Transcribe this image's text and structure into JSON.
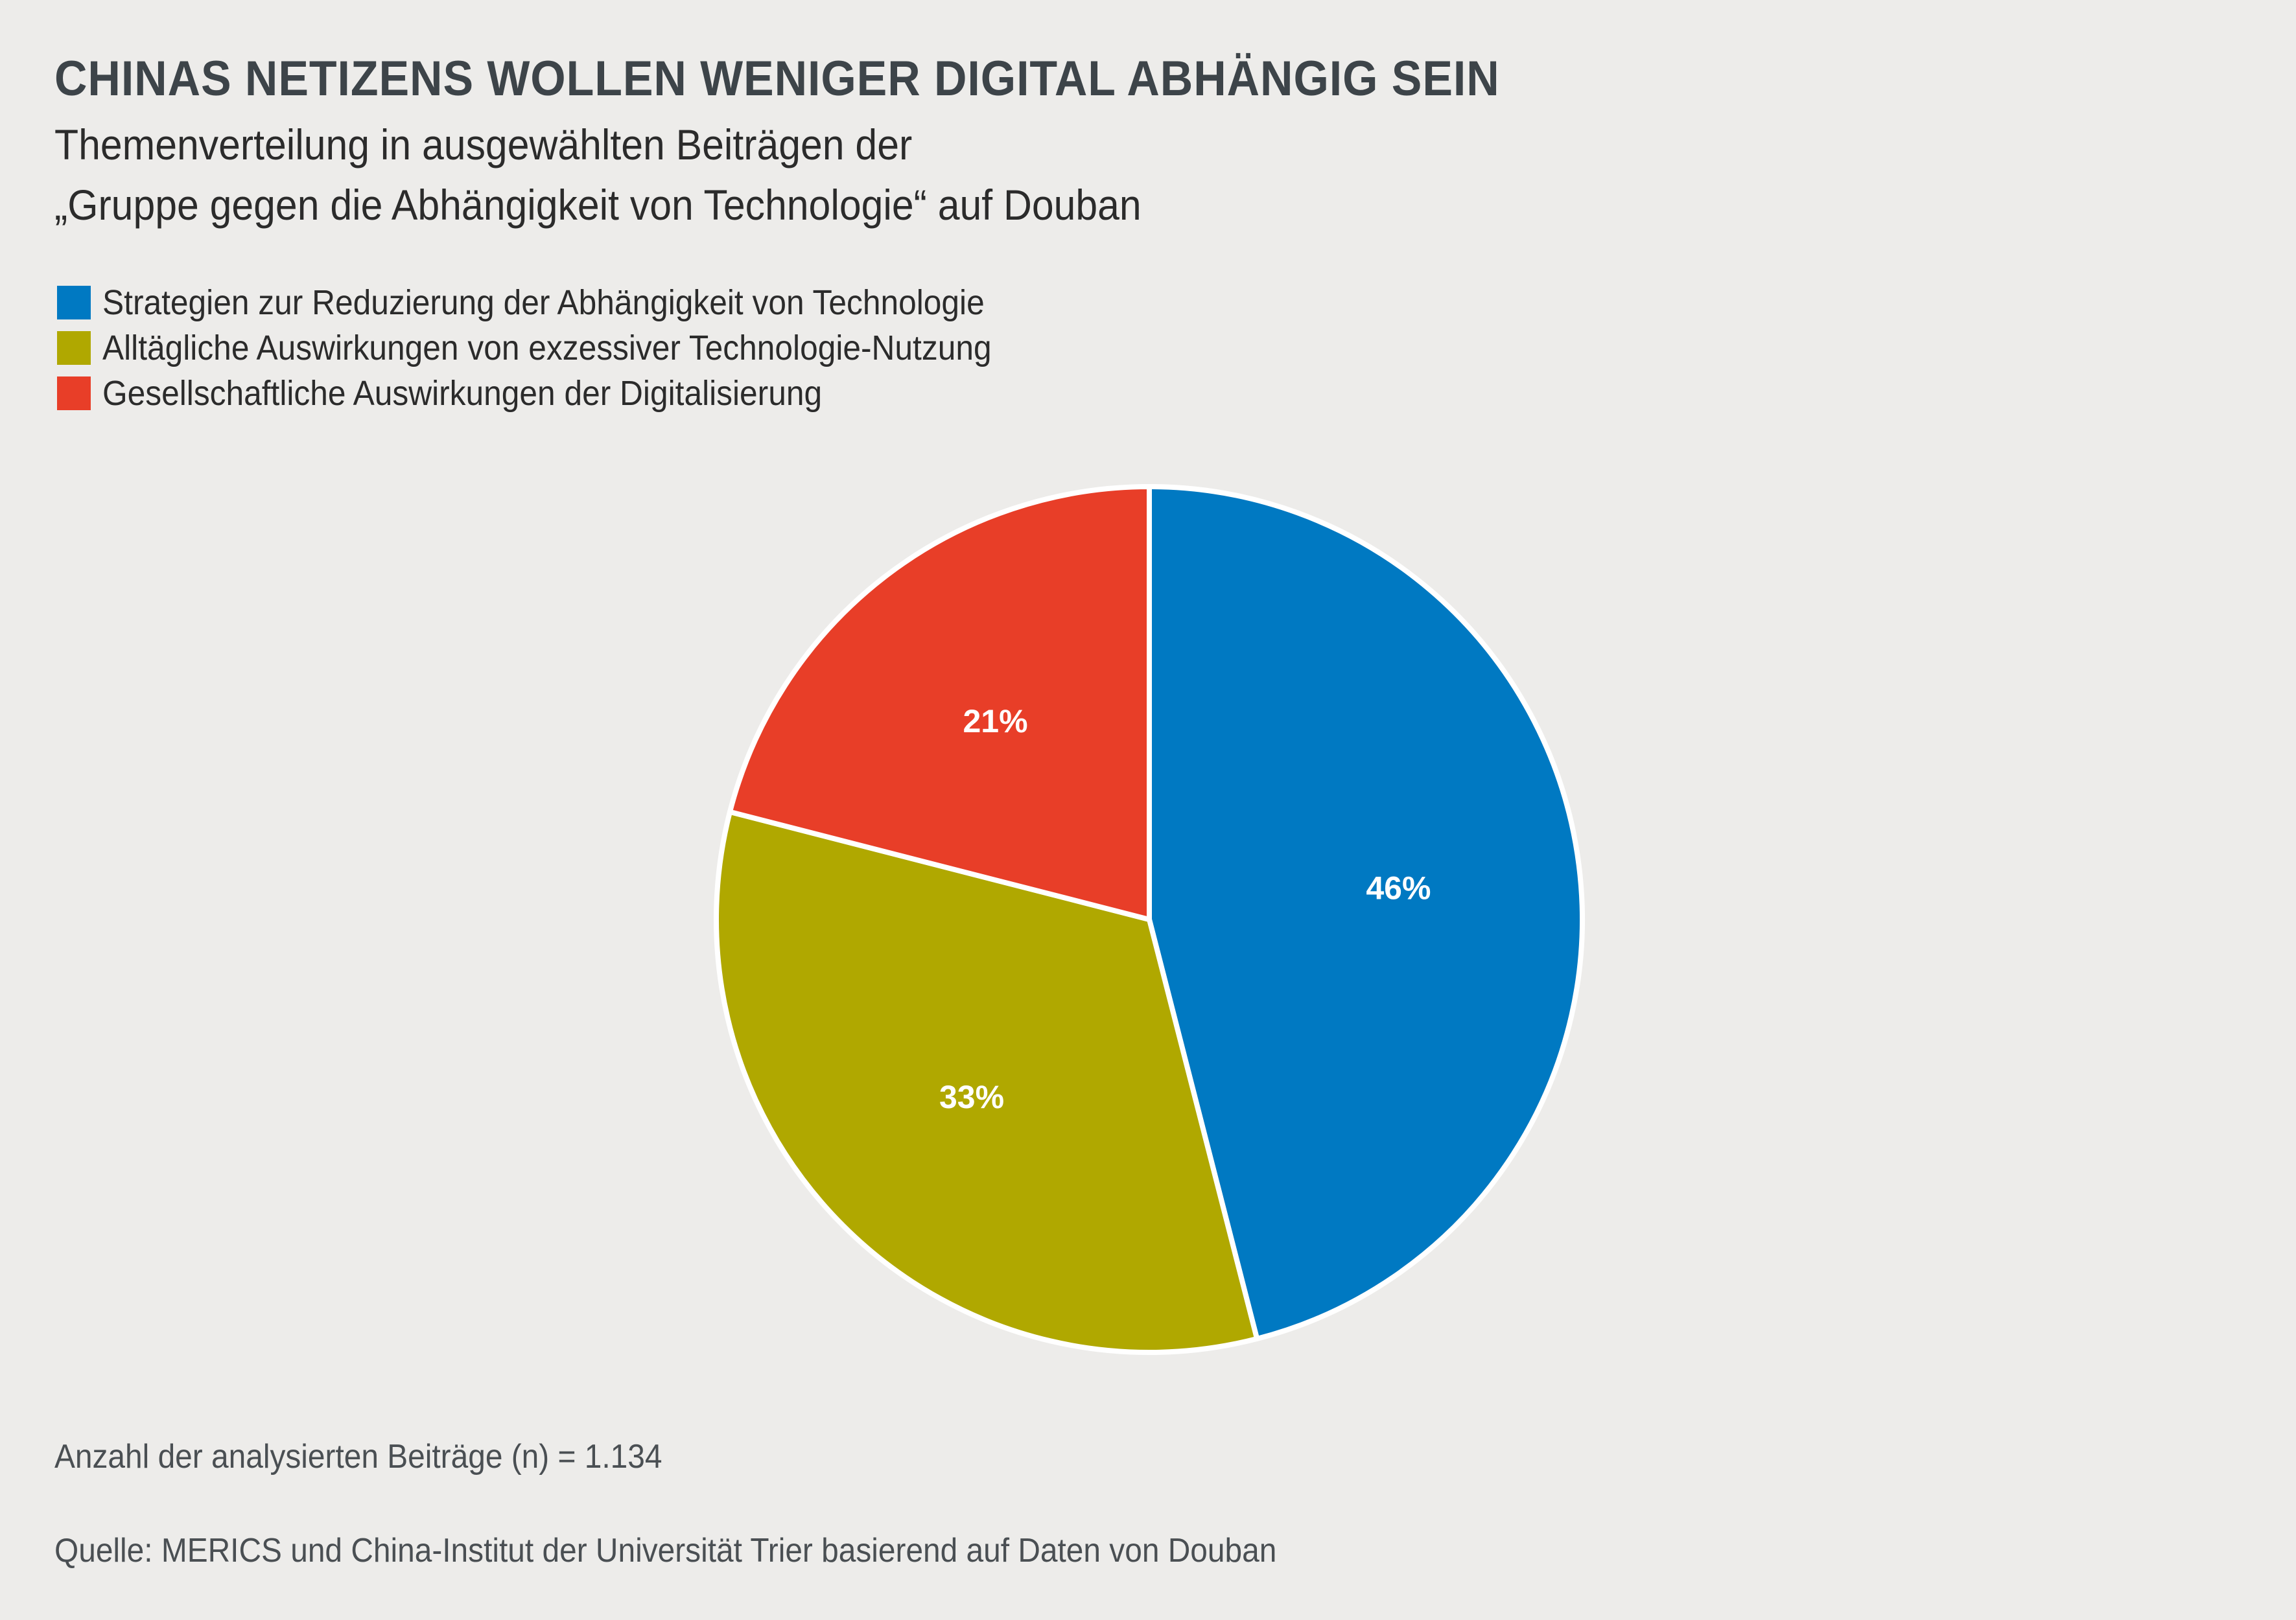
{
  "header": {
    "title": "CHINAS NETIZENS WOLLEN WENIGER DIGITAL ABHÄNGIG SEIN",
    "subtitle_line1": "Themenverteilung in ausgewählten Beiträgen der",
    "subtitle_line2": "„Gruppe gegen die Abhängigkeit von Technologie“ auf Douban"
  },
  "footer": {
    "sample_size": "Anzahl der analysierten Beiträge (n) = 1.134",
    "source": "Quelle: MERICS und China-Institut der Universität Trier basierend auf Daten von Douban"
  },
  "chart_data": {
    "type": "pie",
    "title": "CHINAS NETIZENS WOLLEN WENIGER DIGITAL ABHÄNGIG SEIN",
    "subtitle": "Themenverteilung in ausgewählten Beiträgen der „Gruppe gegen die Abhängigkeit von Technologie“ auf Douban",
    "legend_position": "top-left",
    "start_angle": "12 o'clock, clockwise",
    "slices": [
      {
        "name": "Strategien zur Reduzierung der Abhängigkeit von Technologie",
        "value": 46,
        "label": "46%",
        "color": "#0079c2"
      },
      {
        "name": "Alltägliche Auswirkungen von exzessiver Technologie-Nutzung",
        "value": 33,
        "label": "33%",
        "color": "#b0a800"
      },
      {
        "name": "Gesellschaftliche Auswirkungen der Digitalisierung",
        "value": 21,
        "label": "21%",
        "color": "#e83e28"
      }
    ],
    "n": "1.134"
  }
}
